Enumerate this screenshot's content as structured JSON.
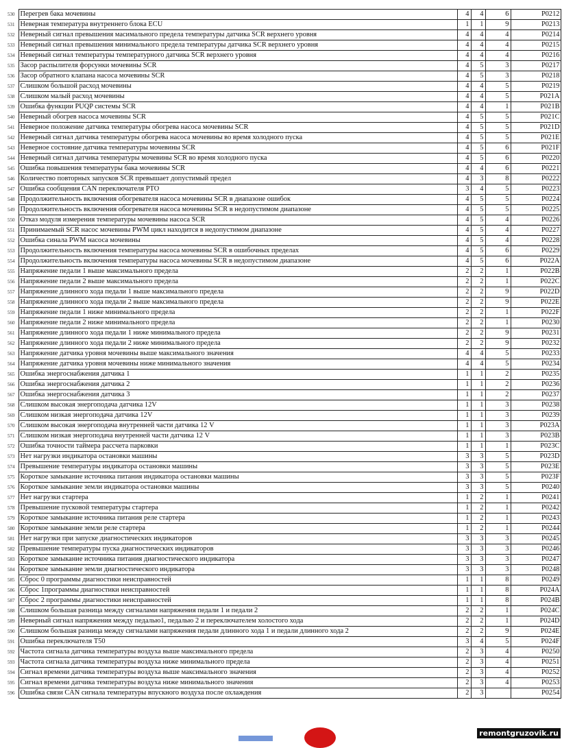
{
  "table": {
    "rows": [
      [
        "530",
        "Перегрев бака мочевины",
        "4",
        "4",
        "6",
        "P0212"
      ],
      [
        "531",
        "Неверная температура внутреннего блока ECU",
        "1",
        "1",
        "9",
        "P0213"
      ],
      [
        "532",
        "Неверный сигнал превышения масимального предела температуры датчика SCR верхнего уровня",
        "4",
        "4",
        "4",
        "P0214"
      ],
      [
        "533",
        "Неверный сигнал превышения минимального предела температуры датчика SCR верхнего уровня",
        "4",
        "4",
        "4",
        "P0215"
      ],
      [
        "534",
        "Неверный сигнал температуры температурного датчика SCR верхнего уровня",
        "4",
        "4",
        "4",
        "P0216"
      ],
      [
        "535",
        "Засор распылителя форсунки мочевины SCR",
        "4",
        "5",
        "3",
        "P0217"
      ],
      [
        "536",
        "Засор обратного клапана насоса мочевины SCR",
        "4",
        "5",
        "3",
        "P0218"
      ],
      [
        "537",
        "Слишком большой расход мочевины",
        "4",
        "4",
        "5",
        "P0219"
      ],
      [
        "538",
        "Слишком малый расход мочевины",
        "4",
        "4",
        "5",
        "P021A"
      ],
      [
        "539",
        "Ошибка функции PUQP системы SCR",
        "4",
        "4",
        "1",
        "P021B"
      ],
      [
        "540",
        "Неверный обогрев насоса мочевины SCR",
        "4",
        "5",
        "5",
        "P021C"
      ],
      [
        "541",
        "Неверное положение датчика температуры обогрева насоса мочевины SCR",
        "4",
        "5",
        "5",
        "P021D"
      ],
      [
        "542",
        "Неверный сигнал датчика температуры обогрева насоса мочевины во время холодного пуска",
        "4",
        "5",
        "5",
        "P021E"
      ],
      [
        "543",
        "Неверное состояние датчика температуры мочевины SCR",
        "4",
        "5",
        "6",
        "P021F"
      ],
      [
        "544",
        "Неверный сигнал датчика температуры мочевины SCR  во время холодного пуска",
        "4",
        "5",
        "6",
        "P0220"
      ],
      [
        "545",
        "Ошибка повышения температуры бака мочевины SCR",
        "4",
        "4",
        "6",
        "P0221"
      ],
      [
        "546",
        "Количество повторных запусков SCR превышает допустимый предел",
        "4",
        "3",
        "8",
        "P0222"
      ],
      [
        "547",
        "Ошибка сообщения CAN переключателя PTO",
        "3",
        "4",
        "5",
        "P0223"
      ],
      [
        "548",
        "Продолжительность включения обогревателя насоса мочевины SCR в диапазоне ошибок",
        "4",
        "5",
        "5",
        "P0224"
      ],
      [
        "549",
        "Продолжительность включения обогревателя насоса мочевины SCR в недопустимом диапазоне",
        "4",
        "5",
        "5",
        "P0225"
      ],
      [
        "550",
        "Отказ модуля измерения температуры мочевины насоса SCR",
        "4",
        "5",
        "4",
        "P0226"
      ],
      [
        "551",
        "Принимаемый SCR насос мочевины  PWM цикл находится в недопустимом диапазоне",
        "4",
        "5",
        "4",
        "P0227"
      ],
      [
        "552",
        "Ошибка синала PWM насоса мочевины",
        "4",
        "5",
        "4",
        "P0228"
      ],
      [
        "553",
        "Продолжительность включения температуры насоса мочевины SCR в ошибочных пределах",
        "4",
        "5",
        "6",
        "P0229"
      ],
      [
        "554",
        "Продолжительность включения температуры насоса мочевины SCR в недопустимом диапазоне",
        "4",
        "5",
        "6",
        "P022A"
      ],
      [
        "555",
        "Напряжение педали 1 выше максимального предела",
        "2",
        "2",
        "1",
        "P022B"
      ],
      [
        "556",
        "Напряжение педали 2 выше максимального предела",
        "2",
        "2",
        "1",
        "P022C"
      ],
      [
        "557",
        "Напряжение длинного хода педали 1 выше максимального предела",
        "2",
        "2",
        "9",
        "P022D"
      ],
      [
        "558",
        "Напряжение длинного хода педали 2 выше максимального предела",
        "2",
        "2",
        "9",
        "P022E"
      ],
      [
        "559",
        "Напряжение педали 1 ниже минимального предела",
        "2",
        "2",
        "1",
        "P022F"
      ],
      [
        "560",
        "Напряжение педали 2 ниже минимального предела",
        "2",
        "2",
        "1",
        "P0230"
      ],
      [
        "561",
        "Напряжение длинного хода педали 1 ниже минимального предела",
        "2",
        "2",
        "9",
        "P0231"
      ],
      [
        "562",
        "Напряжение длинного хода педали 2 ниже минимального предела",
        "2",
        "2",
        "9",
        "P0232"
      ],
      [
        "563",
        "Напряжение датчика уровня мочевины выше максимального значения",
        "4",
        "4",
        "5",
        "P0233"
      ],
      [
        "564",
        "Напряжение датчика уровня мочевины ниже минимального значения",
        "4",
        "4",
        "5",
        "P0234"
      ],
      [
        "565",
        "Ошибка энергоснабжения датчика 1",
        "1",
        "1",
        "2",
        "P0235"
      ],
      [
        "566",
        "Ошибка энергоснабжения датчика 2",
        "1",
        "1",
        "2",
        "P0236"
      ],
      [
        "567",
        "Ошибка энергоснабжения датчика 3",
        "1",
        "1",
        "2",
        "P0237"
      ],
      [
        "568",
        "Слишком высокая энергоподача датчика 12V",
        "1",
        "1",
        "3",
        "P0238"
      ],
      [
        "569",
        "Слишком низкая энергоподача датчика 12V",
        "1",
        "1",
        "3",
        "P0239"
      ],
      [
        "570",
        "Слишком высокая энергоподача внутренней части датчика 12 V",
        "1",
        "1",
        "3",
        "P023A"
      ],
      [
        "571",
        "Слишком низкая энергоподача внутренней части датчика 12 V",
        "1",
        "1",
        "3",
        "P023B"
      ],
      [
        "572",
        "Ошибка точности таймера рассчета парковки",
        "1",
        "1",
        "1",
        "P023C"
      ],
      [
        "573",
        "Нет нагрузки индикатора остановки машины",
        "3",
        "3",
        "5",
        "P023D"
      ],
      [
        "574",
        "Превышение температуры индикатора остановки машины",
        "3",
        "3",
        "5",
        "P023E"
      ],
      [
        "575",
        "Короткое замыкание источника питания индикатора остановки машины",
        "3",
        "3",
        "5",
        "P023F"
      ],
      [
        "576",
        "Короткое замыкание земли индикатора остановки машины",
        "3",
        "3",
        "5",
        "P0240"
      ],
      [
        "577",
        "Нет нагрузки стартера",
        "1",
        "2",
        "1",
        "P0241"
      ],
      [
        "578",
        "Превышение пусковой температуры стартера",
        "1",
        "2",
        "1",
        "P0242"
      ],
      [
        "579",
        "Короткое замыкание источника питания реле стартера",
        "1",
        "2",
        "1",
        "P0243"
      ],
      [
        "580",
        "Короткое замыкание земли реле стартера",
        "1",
        "2",
        "1",
        "P0244"
      ],
      [
        "581",
        "Нет нагрузки при запуске диагностических индикаторов",
        "3",
        "3",
        "3",
        "P0245"
      ],
      [
        "582",
        "Превышение температуры пуска диагностических индикаторов",
        "3",
        "3",
        "3",
        "P0246"
      ],
      [
        "583",
        "Короткое замыкание источника питания диагностического индикатора",
        "3",
        "3",
        "3",
        "P0247"
      ],
      [
        "584",
        "Короткое замыкание земли диагностического индикатора",
        "3",
        "3",
        "3",
        "P0248"
      ],
      [
        "585",
        "Сброс 0 программы диагностики неисправностей",
        "1",
        "1",
        "8",
        "P0249"
      ],
      [
        "586",
        "Сброс 1программы диагностики неисправностей",
        "1",
        "1",
        "8",
        "P024A"
      ],
      [
        "587",
        "Сброс 2 программы диагностики неисправностей",
        "1",
        "1",
        "8",
        "P024B"
      ],
      [
        "588",
        "Слишком большая разница между сигналами напряжения педали 1 и педали 2",
        "2",
        "2",
        "1",
        "P024C"
      ],
      [
        "589",
        "Неверный сигнал напряжения между педалью1, педалью 2 и переключателем холостого хода",
        "2",
        "2",
        "1",
        "P024D"
      ],
      [
        "590",
        "Слишком большая разница между сигналами напряжения педали длинного хода 1 и педали длинного хода 2",
        "2",
        "2",
        "9",
        "P024E"
      ],
      [
        "591",
        "Ошибка переключателя T50",
        "3",
        "4",
        "5",
        "P024F"
      ],
      [
        "592",
        "Частота сигнала датчика температуры воздуха выше максимального предела",
        "2",
        "3",
        "4",
        "P0250"
      ],
      [
        "593",
        "Частота сигнала датчика температуры воздуха ниже минимального предела",
        "2",
        "3",
        "4",
        "P0251"
      ],
      [
        "594",
        "Сигнал времени датчика температуры воздуха выше максимального значения",
        "2",
        "3",
        "4",
        "P0252"
      ],
      [
        "595",
        "Сигнал времени датчика температуры воздуха ниже минимального значения",
        "2",
        "3",
        "4",
        "P0253"
      ],
      [
        "596",
        "Ошибка связи CAN сигнала температуры впускного воздуха после охлаждения",
        "2",
        "3",
        "",
        "P0254"
      ]
    ]
  },
  "watermark": "remontgruzovik.ru"
}
